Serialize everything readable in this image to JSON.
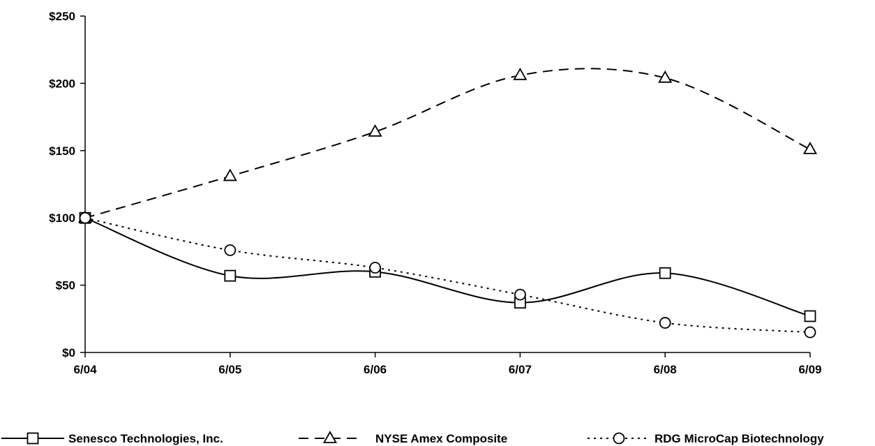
{
  "chart_data": {
    "type": "line",
    "title": "",
    "xlabel": "",
    "ylabel": "",
    "categories": [
      "6/04",
      "6/05",
      "6/06",
      "6/07",
      "6/08",
      "6/09"
    ],
    "y_tick_labels": [
      "$0",
      "$50",
      "$100",
      "$150",
      "$200",
      "$250"
    ],
    "ylim": [
      0,
      250
    ],
    "grid": false,
    "legend_position": "bottom",
    "series": [
      {
        "name": "Senesco Technologies, Inc.",
        "values": [
          100,
          57,
          60,
          37,
          59,
          27
        ],
        "color": "#000000",
        "dash": "solid",
        "marker": "square"
      },
      {
        "name": "NYSE Amex Composite",
        "values": [
          100,
          131,
          164,
          206,
          204,
          151
        ],
        "color": "#000000",
        "dash": "dashed",
        "marker": "triangle"
      },
      {
        "name": "RDG MicroCap Biotechnology",
        "values": [
          100,
          76,
          63,
          43,
          22,
          15
        ],
        "color": "#000000",
        "dash": "dotted",
        "marker": "circle"
      }
    ]
  }
}
